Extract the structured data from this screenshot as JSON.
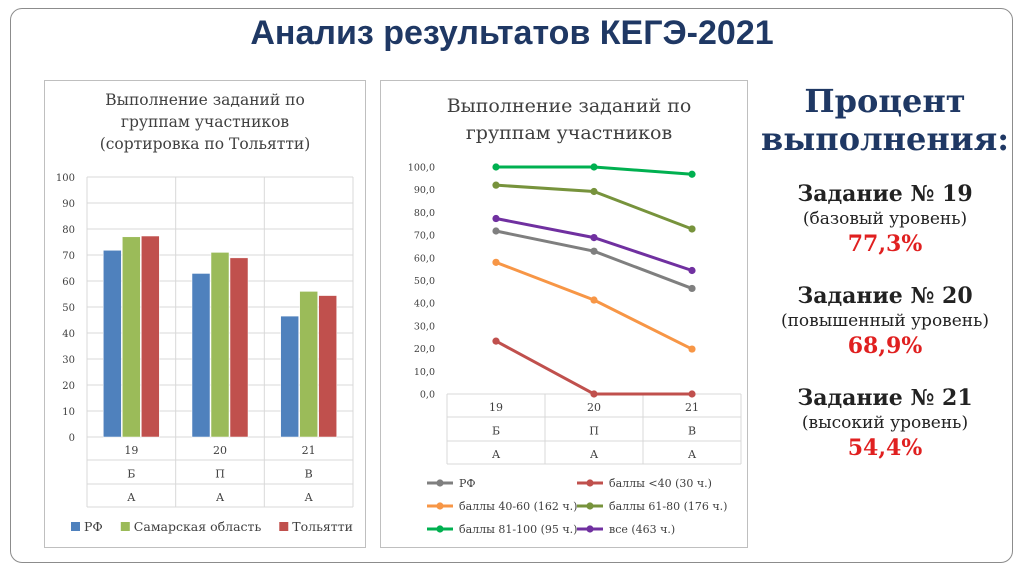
{
  "title": "Анализ результатов КЕГЭ-2021",
  "chart_data": [
    {
      "type": "bar",
      "title": "Выполнение заданий по\nгруппам участников\n(сортировка по Тольятти)",
      "categories": [
        "19",
        "20",
        "21"
      ],
      "category_rows": [
        [
          "19",
          "Б",
          "А"
        ],
        [
          "20",
          "П",
          "А"
        ],
        [
          "21",
          "В",
          "А"
        ]
      ],
      "series": [
        {
          "name": "РФ",
          "color": "#4f81bd",
          "values": [
            71.8,
            62.9,
            46.5
          ]
        },
        {
          "name": "Самарская область",
          "color": "#9bbb59",
          "values": [
            77.0,
            71.0,
            56.0
          ]
        },
        {
          "name": "Тольятти",
          "color": "#c0504d",
          "values": [
            77.3,
            68.9,
            54.4
          ]
        }
      ],
      "yticks": [
        "100",
        "90",
        "80",
        "70",
        "60",
        "50",
        "40",
        "30",
        "20",
        "10",
        "0"
      ],
      "ylim": [
        0,
        100
      ],
      "legend_position": "bottom"
    },
    {
      "type": "line",
      "title": "Выполнение заданий по\nгруппам участников",
      "categories": [
        "19",
        "20",
        "21"
      ],
      "category_rows": [
        [
          "19",
          "Б",
          "А"
        ],
        [
          "20",
          "П",
          "А"
        ],
        [
          "21",
          "В",
          "А"
        ]
      ],
      "series": [
        {
          "name": "РФ",
          "color": "#7f7f7f",
          "values": [
            71.8,
            62.9,
            46.5
          ]
        },
        {
          "name": "баллы <40 (30 ч.)",
          "color": "#c0504d",
          "values": [
            23.3,
            0.0,
            0.0
          ]
        },
        {
          "name": "баллы 40-60 (162 ч.)",
          "color": "#f79646",
          "values": [
            58.0,
            41.4,
            19.8
          ]
        },
        {
          "name": "баллы 61-80 (176 ч.)",
          "color": "#77933c",
          "values": [
            92.0,
            89.2,
            72.7
          ]
        },
        {
          "name": "баллы 81-100 (95 ч.)",
          "color": "#00b050",
          "values": [
            100.0,
            100.0,
            96.8
          ]
        },
        {
          "name": "все (463 ч.)",
          "color": "#7030a0",
          "values": [
            77.3,
            68.9,
            54.4
          ]
        }
      ],
      "yticks": [
        "100,0",
        "90,0",
        "80,0",
        "70,0",
        "60,0",
        "50,0",
        "40,0",
        "30,0",
        "20,0",
        "10,0",
        "0,0"
      ],
      "ylim": [
        0,
        100
      ],
      "legend_position": "bottom"
    }
  ],
  "right_panel": {
    "title_line1": "Процент",
    "title_line2": "выполнения:",
    "tasks": [
      {
        "name": "Задание № 19",
        "level": "(базовый уровень)",
        "value": "77,3%"
      },
      {
        "name": "Задание № 20",
        "level": "(повышенный уровень)",
        "value": "68,9%"
      },
      {
        "name": "Задание № 21",
        "level": "(высокий уровень)",
        "value": "54,4%"
      }
    ]
  }
}
